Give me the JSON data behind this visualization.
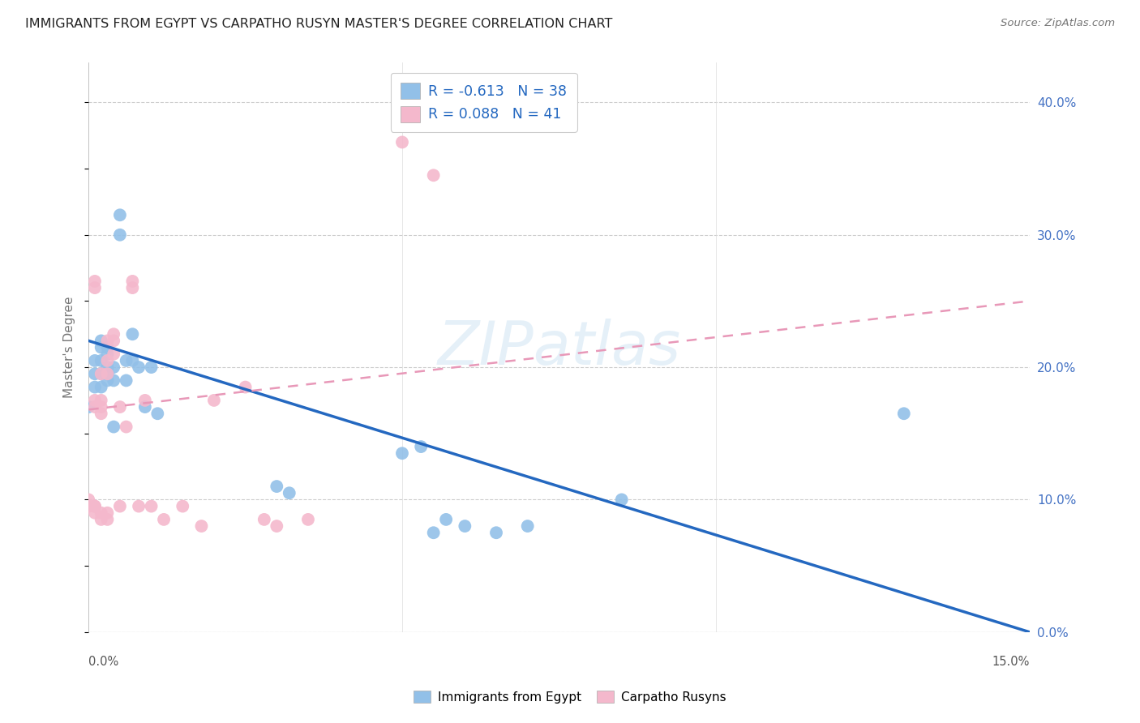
{
  "title": "IMMIGRANTS FROM EGYPT VS CARPATHO RUSYN MASTER'S DEGREE CORRELATION CHART",
  "source": "Source: ZipAtlas.com",
  "ylabel": "Master's Degree",
  "ylabel_right_ticks": [
    "40.0%",
    "30.0%",
    "20.0%",
    "10.0%",
    "0.0%"
  ],
  "ylabel_right_vals": [
    0.4,
    0.3,
    0.2,
    0.1,
    0.0
  ],
  "xlim": [
    0,
    0.15
  ],
  "ylim": [
    0,
    0.43
  ],
  "legend_blue_r": "-0.613",
  "legend_blue_n": "38",
  "legend_pink_r": "0.088",
  "legend_pink_n": "41",
  "blue_color": "#92c0e8",
  "pink_color": "#f4b8cc",
  "blue_line_color": "#2468c0",
  "pink_line_color": "#e898b8",
  "watermark": "ZIPatlas",
  "blue_points_x": [
    0.0,
    0.001,
    0.001,
    0.001,
    0.002,
    0.002,
    0.002,
    0.002,
    0.002,
    0.003,
    0.003,
    0.003,
    0.003,
    0.003,
    0.004,
    0.004,
    0.004,
    0.005,
    0.005,
    0.006,
    0.006,
    0.007,
    0.007,
    0.008,
    0.009,
    0.01,
    0.011,
    0.03,
    0.032,
    0.05,
    0.053,
    0.055,
    0.057,
    0.06,
    0.065,
    0.07,
    0.085,
    0.13
  ],
  "blue_points_y": [
    0.17,
    0.185,
    0.195,
    0.205,
    0.185,
    0.195,
    0.205,
    0.215,
    0.22,
    0.19,
    0.195,
    0.2,
    0.21,
    0.215,
    0.19,
    0.2,
    0.155,
    0.315,
    0.3,
    0.205,
    0.19,
    0.205,
    0.225,
    0.2,
    0.17,
    0.2,
    0.165,
    0.11,
    0.105,
    0.135,
    0.14,
    0.075,
    0.085,
    0.08,
    0.075,
    0.08,
    0.1,
    0.165
  ],
  "pink_points_x": [
    0.0,
    0.0,
    0.001,
    0.001,
    0.001,
    0.001,
    0.001,
    0.001,
    0.001,
    0.002,
    0.002,
    0.002,
    0.002,
    0.002,
    0.002,
    0.003,
    0.003,
    0.003,
    0.003,
    0.003,
    0.004,
    0.004,
    0.004,
    0.005,
    0.005,
    0.006,
    0.007,
    0.007,
    0.008,
    0.009,
    0.01,
    0.012,
    0.015,
    0.018,
    0.02,
    0.025,
    0.028,
    0.03,
    0.035,
    0.05,
    0.055
  ],
  "pink_points_y": [
    0.095,
    0.1,
    0.09,
    0.095,
    0.095,
    0.17,
    0.175,
    0.26,
    0.265,
    0.085,
    0.09,
    0.165,
    0.17,
    0.175,
    0.195,
    0.085,
    0.09,
    0.195,
    0.205,
    0.22,
    0.21,
    0.22,
    0.225,
    0.095,
    0.17,
    0.155,
    0.26,
    0.265,
    0.095,
    0.175,
    0.095,
    0.085,
    0.095,
    0.08,
    0.175,
    0.185,
    0.085,
    0.08,
    0.085,
    0.37,
    0.345
  ]
}
